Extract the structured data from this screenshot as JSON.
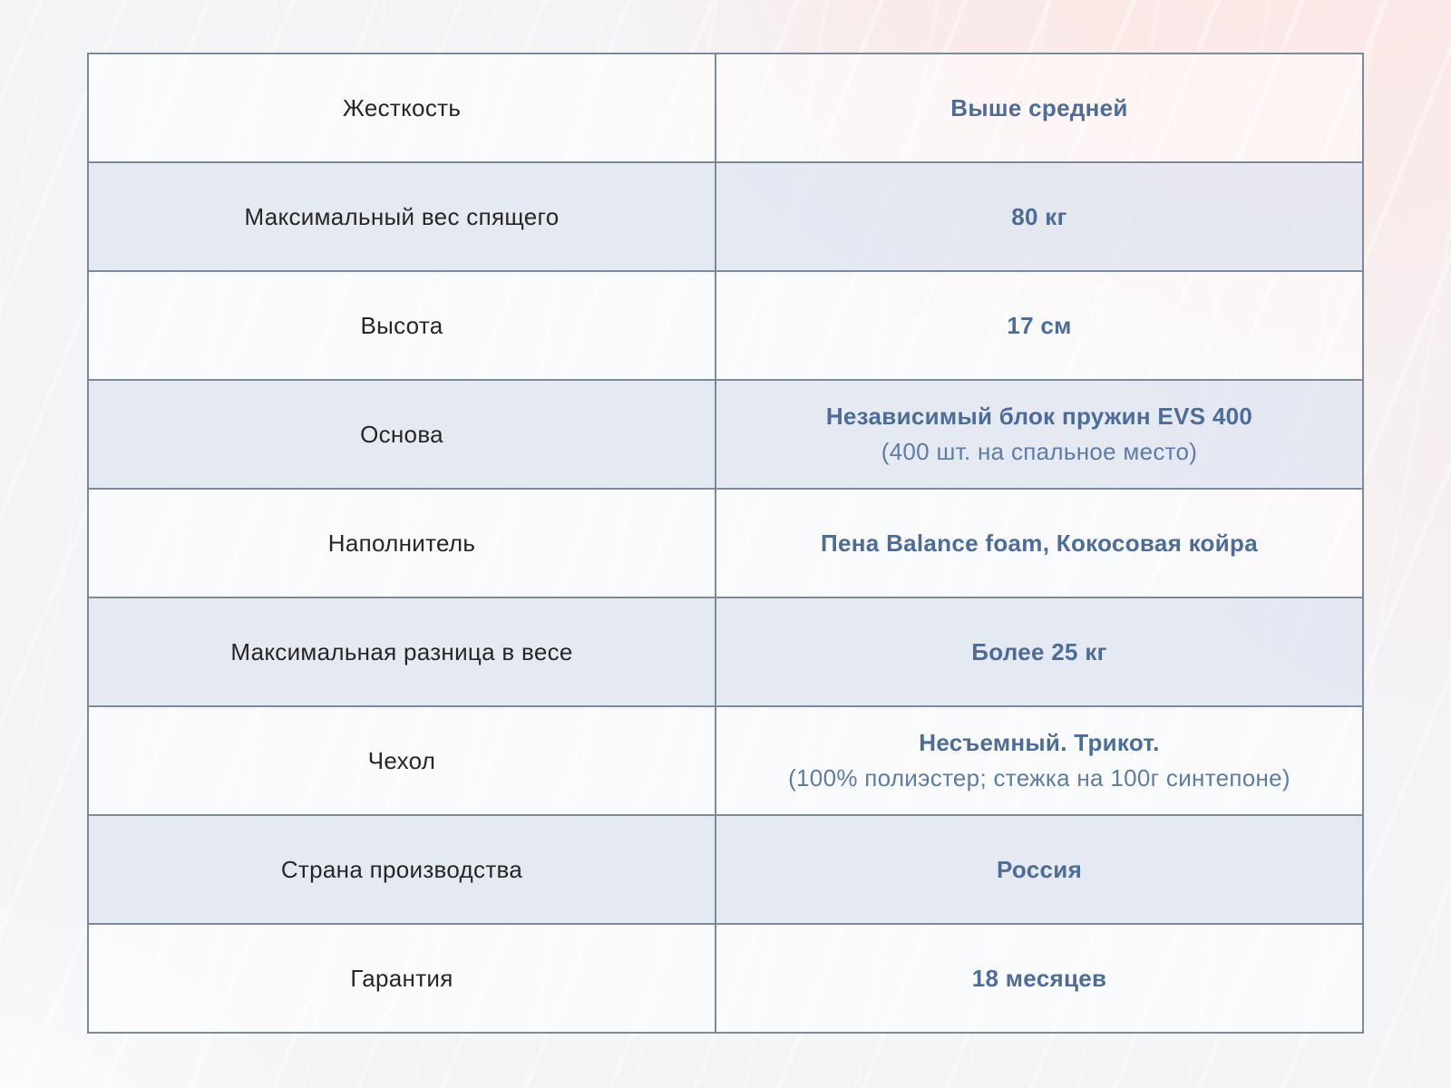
{
  "colors": {
    "page_background": "#f3f4f6",
    "pink_glow": "#fce7e6",
    "row_alt_background": "#e5e8f1",
    "table_border": "#7c8b9b",
    "label_text": "#262626",
    "value_text": "#4c6d99",
    "note_text": "#5e7ca4"
  },
  "table": {
    "rows": [
      {
        "label": "Жесткость",
        "value": "Выше средней",
        "note": ""
      },
      {
        "label": "Максимальный вес спящего",
        "value": "80 кг",
        "note": ""
      },
      {
        "label": "Высота",
        "value": "17 см",
        "note": ""
      },
      {
        "label": "Основа",
        "value": "Независимый блок пружин EVS 400",
        "note": "(400 шт. на спальное место)"
      },
      {
        "label": "Наполнитель",
        "value": "Пена Balance foam, Кокосовая койра",
        "note": ""
      },
      {
        "label": "Максимальная разница в весе",
        "value": "Более 25 кг",
        "note": ""
      },
      {
        "label": "Чехол",
        "value": "Несъемный. Трикот.",
        "note": "(100% полиэстер; стежка на 100г синтепоне)"
      },
      {
        "label": "Страна производства",
        "value": "Россия",
        "note": ""
      },
      {
        "label": "Гарантия",
        "value": "18 месяцев",
        "note": ""
      }
    ]
  }
}
